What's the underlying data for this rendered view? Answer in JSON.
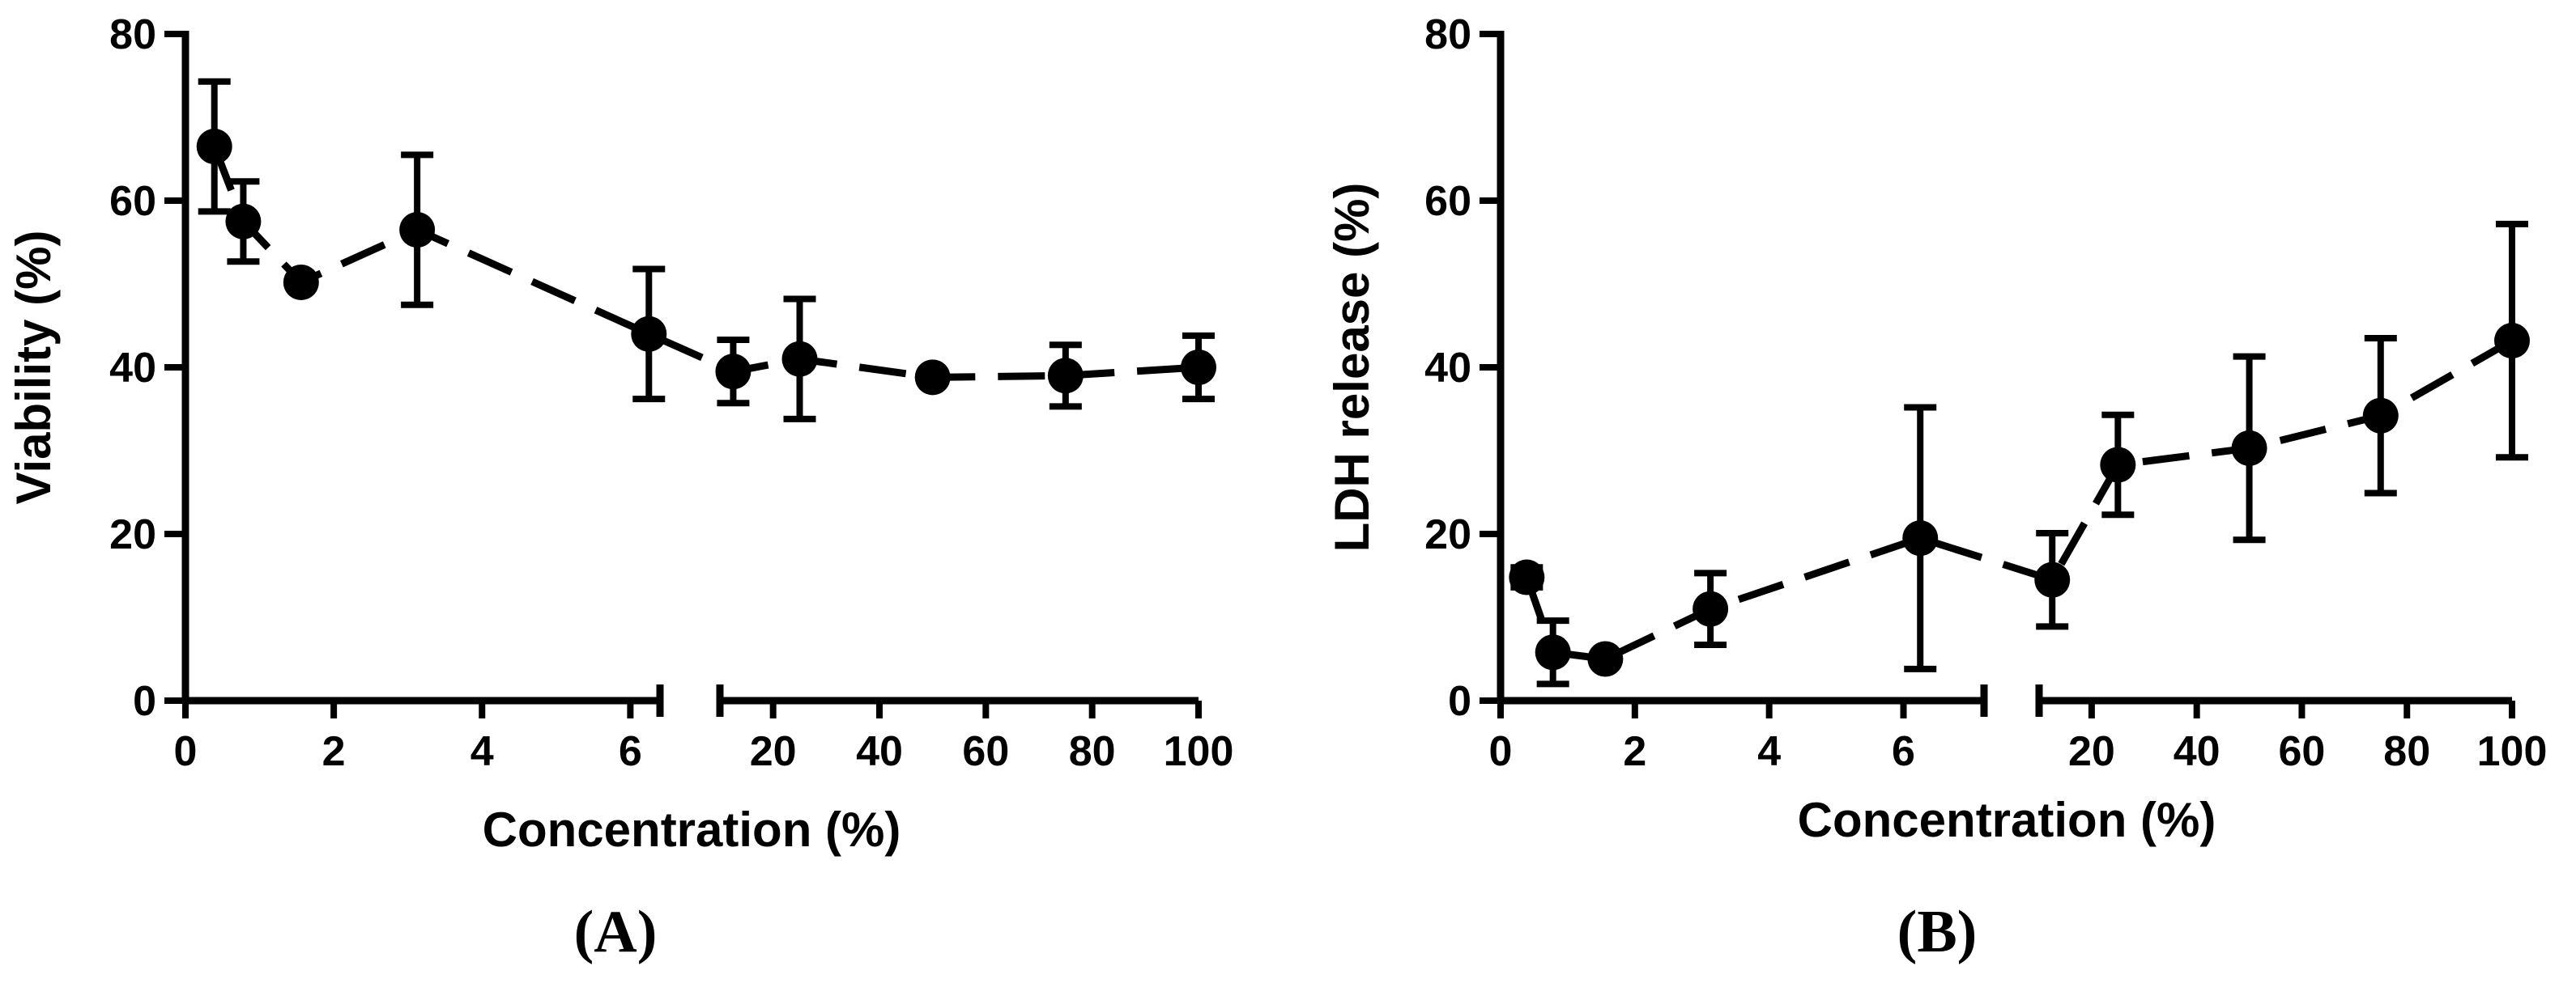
{
  "chart_data": [
    {
      "panel_label": "(A)",
      "type": "scatter",
      "xlabel": "Concentration (%)",
      "ylabel": "Viability (%)",
      "ylim": [
        0,
        80
      ],
      "yticks": [
        "0",
        "20",
        "40",
        "60",
        "80"
      ],
      "x_segments": [
        {
          "xlim": [
            0,
            6.4
          ],
          "ticks": [
            "0",
            "2",
            "4",
            "6"
          ]
        },
        {
          "xlim": [
            10,
            100
          ],
          "ticks": [
            "20",
            "40",
            "60",
            "80",
            "100"
          ]
        }
      ],
      "series": [
        {
          "points": [
            {
              "x": 0.39,
              "y": 66.5,
              "err": 7.8
            },
            {
              "x": 0.78,
              "y": 57.5,
              "err": 4.8
            },
            {
              "x": 1.56,
              "y": 50.2,
              "err": 0
            },
            {
              "x": 3.125,
              "y": 56.5,
              "err": 9.0
            },
            {
              "x": 6.25,
              "y": 44.0,
              "err": 7.8
            },
            {
              "x": 12.5,
              "y": 39.5,
              "err": 3.8
            },
            {
              "x": 25,
              "y": 41.0,
              "err": 7.2
            },
            {
              "x": 50,
              "y": 38.8,
              "err": 0
            },
            {
              "x": 75,
              "y": 39.0,
              "err": 3.7
            },
            {
              "x": 100,
              "y": 40.0,
              "err": 3.8
            }
          ]
        }
      ],
      "grid": false,
      "legend": "none"
    },
    {
      "panel_label": "(B)",
      "type": "scatter",
      "xlabel": "Concentration (%)",
      "ylabel": "LDH release (%)",
      "ylim": [
        0,
        80
      ],
      "yticks": [
        "0",
        "20",
        "40",
        "60",
        "80"
      ],
      "x_segments": [
        {
          "xlim": [
            0,
            7.2
          ],
          "ticks": [
            "0",
            "2",
            "4",
            "6"
          ]
        },
        {
          "xlim": [
            10,
            100
          ],
          "ticks": [
            "20",
            "40",
            "60",
            "80",
            "100"
          ]
        }
      ],
      "series": [
        {
          "points": [
            {
              "x": 0.39,
              "y": 14.8,
              "err": 1.2
            },
            {
              "x": 0.78,
              "y": 5.8,
              "err": 3.8
            },
            {
              "x": 1.56,
              "y": 5.0,
              "err": 0
            },
            {
              "x": 3.125,
              "y": 11.0,
              "err": 4.3
            },
            {
              "x": 6.25,
              "y": 19.5,
              "err": 15.7
            },
            {
              "x": 12.5,
              "y": 14.5,
              "err": 5.6
            },
            {
              "x": 25,
              "y": 28.3,
              "err": 6.0
            },
            {
              "x": 50,
              "y": 30.3,
              "err": 11.0
            },
            {
              "x": 75,
              "y": 34.2,
              "err": 9.3
            },
            {
              "x": 100,
              "y": 43.2,
              "err": 14.0
            }
          ]
        }
      ],
      "grid": false,
      "legend": "none"
    }
  ]
}
